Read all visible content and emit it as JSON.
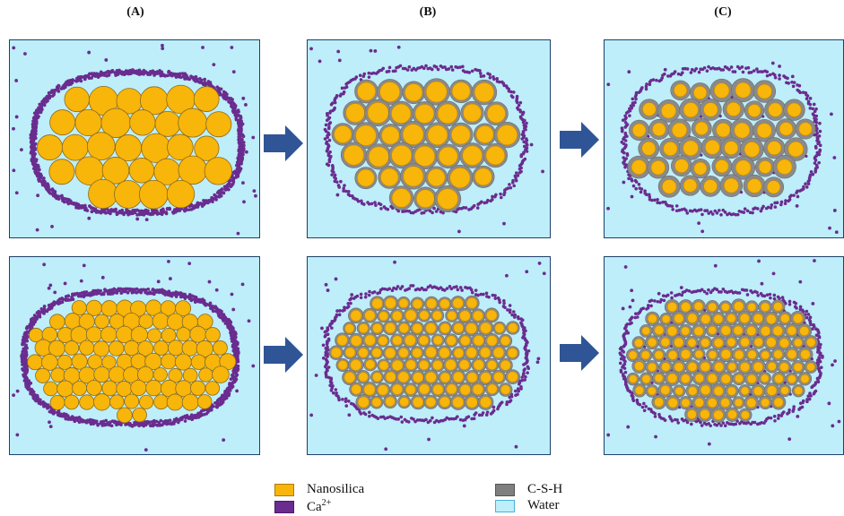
{
  "columns": [
    {
      "label": "(A)"
    },
    {
      "label": "(B)"
    },
    {
      "label": "(C)"
    }
  ],
  "legend": [
    {
      "label": "Nanosilica",
      "color": "#f8b50a"
    },
    {
      "label": "Ca",
      "sup": "2+",
      "color": "#6a2c8f"
    },
    {
      "label": "C-S-H",
      "color": "#7f7f7f"
    },
    {
      "label": "Water",
      "color": "#bdeefa"
    }
  ],
  "colors": {
    "water": "#bdeefa",
    "nanosilica": "#f8b50a",
    "calcium": "#6a2c8f",
    "csh": "#8a8a8a",
    "arrow": "#2f5597",
    "panel_border": "#1f3f6a"
  },
  "panels": [
    {
      "row": "top",
      "column": "(A)",
      "stage": "initial",
      "particle_size": "large"
    },
    {
      "row": "top",
      "column": "(B)",
      "stage": "partial reaction",
      "particle_size": "large"
    },
    {
      "row": "top",
      "column": "(C)",
      "stage": "advanced reaction",
      "particle_size": "large"
    },
    {
      "row": "bottom",
      "column": "(A)",
      "stage": "initial",
      "particle_size": "small"
    },
    {
      "row": "bottom",
      "column": "(B)",
      "stage": "partial reaction",
      "particle_size": "small"
    },
    {
      "row": "bottom",
      "column": "(C)",
      "stage": "advanced reaction",
      "particle_size": "small"
    }
  ],
  "arrows": [
    {
      "from": "(A)",
      "to": "(B)",
      "icon": "right-arrow-icon"
    },
    {
      "from": "(B)",
      "to": "(C)",
      "icon": "right-arrow-icon"
    }
  ]
}
